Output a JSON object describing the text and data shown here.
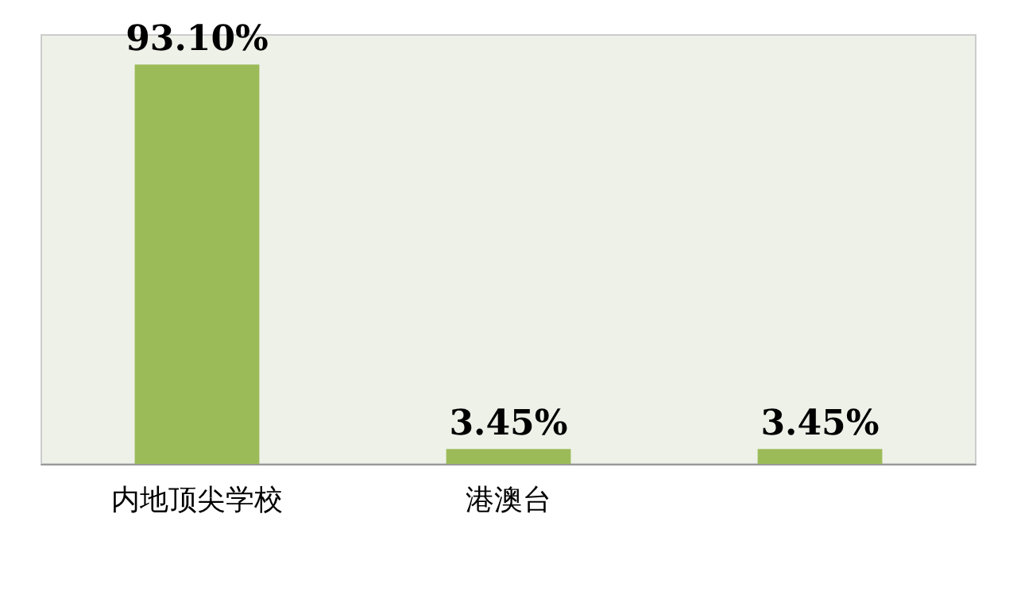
{
  "chart_data": {
    "type": "bar",
    "categories": [
      "内地顶尖学校",
      "港澳台",
      null
    ],
    "values": [
      93.1,
      3.45,
      3.45
    ],
    "value_labels": [
      "93.10%",
      "3.45%",
      "3.45%"
    ],
    "color": "#9bbb59",
    "tick_labels": "x"
  }
}
